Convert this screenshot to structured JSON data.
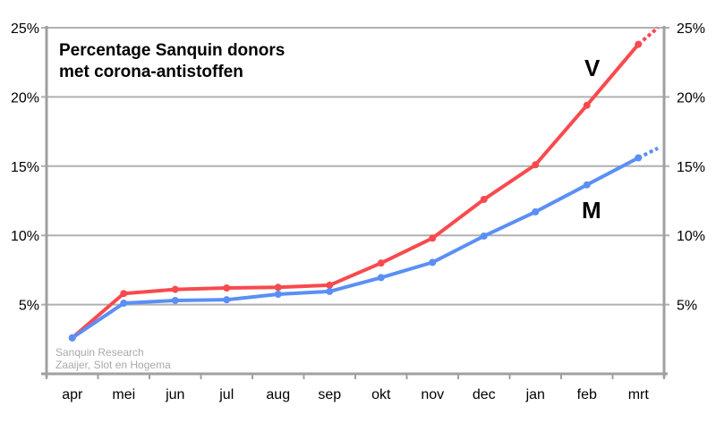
{
  "chart_data": {
    "type": "line",
    "title": "Percentage Sanquin donors met corona-antistoffen",
    "title_lines": [
      "Percentage Sanquin donors",
      "met corona-antistoffen"
    ],
    "source_lines": [
      "Sanquin Research",
      "Zaaijer, Slot en Hogema"
    ],
    "categories": [
      "apr",
      "mei",
      "jun",
      "jul",
      "aug",
      "sep",
      "okt",
      "nov",
      "dec",
      "jan",
      "feb",
      "mrt"
    ],
    "ylim": [
      0,
      25
    ],
    "yticks": [
      5,
      10,
      15,
      20,
      25
    ],
    "ytick_labels": [
      "5%",
      "10%",
      "15%",
      "20%",
      "25%"
    ],
    "grid": true,
    "series": [
      {
        "name": "V",
        "color": "#f84a4e",
        "values": [
          2.6,
          5.8,
          6.1,
          6.2,
          6.25,
          6.4,
          8.0,
          9.8,
          12.6,
          15.1,
          19.4,
          23.8
        ],
        "projection": 25.0
      },
      {
        "name": "M",
        "color": "#5b8ff5",
        "values": [
          2.6,
          5.1,
          5.3,
          5.35,
          5.75,
          5.95,
          6.95,
          8.05,
          9.95,
          11.7,
          13.65,
          15.6
        ],
        "projection": 16.3
      }
    ]
  }
}
